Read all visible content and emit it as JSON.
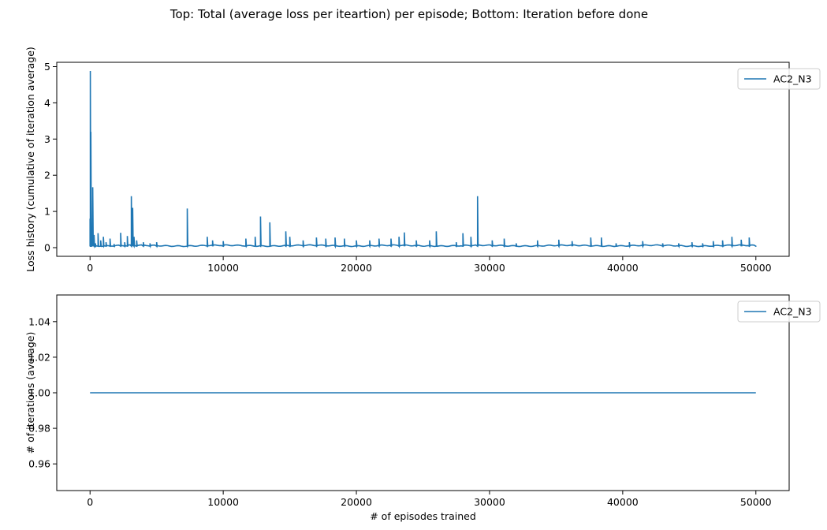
{
  "figure": {
    "suptitle": "Top: Total (average loss per iteartion) per episode; Bottom: Iteration before done"
  },
  "colors": {
    "line": "#1f77b4",
    "axes": "#000000",
    "legend_border": "#cccccc"
  },
  "chart_data": [
    {
      "type": "line",
      "title": "",
      "xlabel": "",
      "ylabel": "Loss history (cumulative of iteration average)",
      "xlim": [
        -2500,
        52500
      ],
      "ylim": [
        -0.24,
        5.12
      ],
      "x_ticks": [
        0,
        10000,
        20000,
        30000,
        40000,
        50000
      ],
      "x_tick_labels": [
        "0",
        "10000",
        "20000",
        "30000",
        "40000",
        "50000"
      ],
      "y_ticks": [
        0,
        1,
        2,
        3,
        4,
        5
      ],
      "y_tick_labels": [
        "0",
        "1",
        "2",
        "3",
        "4",
        "5"
      ],
      "grid": false,
      "legend_position": "top-right",
      "series": [
        {
          "name": "AC2_N3",
          "baseline": 0.04,
          "points": [
            [
              0,
              0.8
            ],
            [
              20,
              4.88
            ],
            [
              40,
              1.6
            ],
            [
              60,
              3.2
            ],
            [
              80,
              1.52
            ],
            [
              120,
              0.45
            ],
            [
              200,
              1.67
            ],
            [
              300,
              0.35
            ],
            [
              400,
              0.12
            ],
            [
              600,
              0.4
            ],
            [
              800,
              0.2
            ],
            [
              1000,
              0.3
            ],
            [
              1200,
              0.15
            ],
            [
              1500,
              0.25
            ],
            [
              1800,
              0.1
            ],
            [
              2300,
              0.41
            ],
            [
              2600,
              0.15
            ],
            [
              2800,
              0.32
            ],
            [
              3100,
              1.42
            ],
            [
              3200,
              1.1
            ],
            [
              3300,
              0.3
            ],
            [
              3500,
              0.2
            ],
            [
              4000,
              0.15
            ],
            [
              4500,
              0.12
            ],
            [
              5000,
              0.15
            ],
            [
              7300,
              1.08
            ],
            [
              8800,
              0.3
            ],
            [
              9200,
              0.2
            ],
            [
              10000,
              0.18
            ],
            [
              11700,
              0.25
            ],
            [
              12400,
              0.3
            ],
            [
              12800,
              0.86
            ],
            [
              13500,
              0.7
            ],
            [
              14700,
              0.45
            ],
            [
              15000,
              0.3
            ],
            [
              16000,
              0.2
            ],
            [
              17000,
              0.28
            ],
            [
              17700,
              0.25
            ],
            [
              18400,
              0.28
            ],
            [
              19100,
              0.25
            ],
            [
              20000,
              0.2
            ],
            [
              21000,
              0.2
            ],
            [
              21700,
              0.25
            ],
            [
              22600,
              0.25
            ],
            [
              23200,
              0.3
            ],
            [
              23600,
              0.42
            ],
            [
              24500,
              0.2
            ],
            [
              25500,
              0.2
            ],
            [
              26000,
              0.45
            ],
            [
              27500,
              0.15
            ],
            [
              28000,
              0.4
            ],
            [
              28600,
              0.3
            ],
            [
              29100,
              1.42
            ],
            [
              30200,
              0.2
            ],
            [
              31100,
              0.25
            ],
            [
              32000,
              0.12
            ],
            [
              33600,
              0.2
            ],
            [
              35200,
              0.22
            ],
            [
              36200,
              0.18
            ],
            [
              37600,
              0.28
            ],
            [
              38400,
              0.28
            ],
            [
              39500,
              0.12
            ],
            [
              40500,
              0.15
            ],
            [
              41500,
              0.18
            ],
            [
              43000,
              0.12
            ],
            [
              44200,
              0.12
            ],
            [
              45200,
              0.15
            ],
            [
              46000,
              0.12
            ],
            [
              46800,
              0.18
            ],
            [
              47500,
              0.2
            ],
            [
              48200,
              0.3
            ],
            [
              48900,
              0.22
            ],
            [
              49500,
              0.28
            ],
            [
              50000,
              0.04
            ]
          ]
        }
      ]
    },
    {
      "type": "line",
      "title": "",
      "xlabel": "# of episodes trained",
      "ylabel": "# of iterations (average)",
      "xlim": [
        -2500,
        52500
      ],
      "ylim": [
        0.945,
        1.055
      ],
      "x_ticks": [
        0,
        10000,
        20000,
        30000,
        40000,
        50000
      ],
      "x_tick_labels": [
        "0",
        "10000",
        "20000",
        "30000",
        "40000",
        "50000"
      ],
      "y_ticks": [
        0.96,
        0.98,
        1.0,
        1.02,
        1.04
      ],
      "y_tick_labels": [
        "0.96",
        "0.98",
        "1.00",
        "1.02",
        "1.04"
      ],
      "grid": false,
      "legend_position": "top-right",
      "series": [
        {
          "name": "AC2_N3",
          "x": [
            0,
            50000
          ],
          "y": [
            1.0,
            1.0
          ]
        }
      ]
    }
  ]
}
